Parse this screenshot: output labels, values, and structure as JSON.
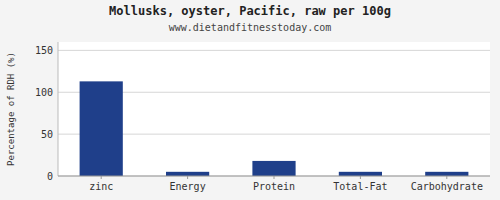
{
  "chart_data": {
    "type": "bar",
    "title": "Mollusks, oyster, Pacific, raw per 100g",
    "subtitle": "www.dietandfitnesstoday.com",
    "y_label": "Percentage of RDH (%)",
    "categories": [
      "zinc",
      "Energy",
      "Protein",
      "Total-Fat",
      "Carbohydrate"
    ],
    "values": [
      113,
      5,
      18,
      5,
      5
    ],
    "color": "#1F3F8A",
    "ylim": [
      0,
      160
    ],
    "yticks": [
      0,
      50,
      100,
      150
    ],
    "grid": true
  }
}
